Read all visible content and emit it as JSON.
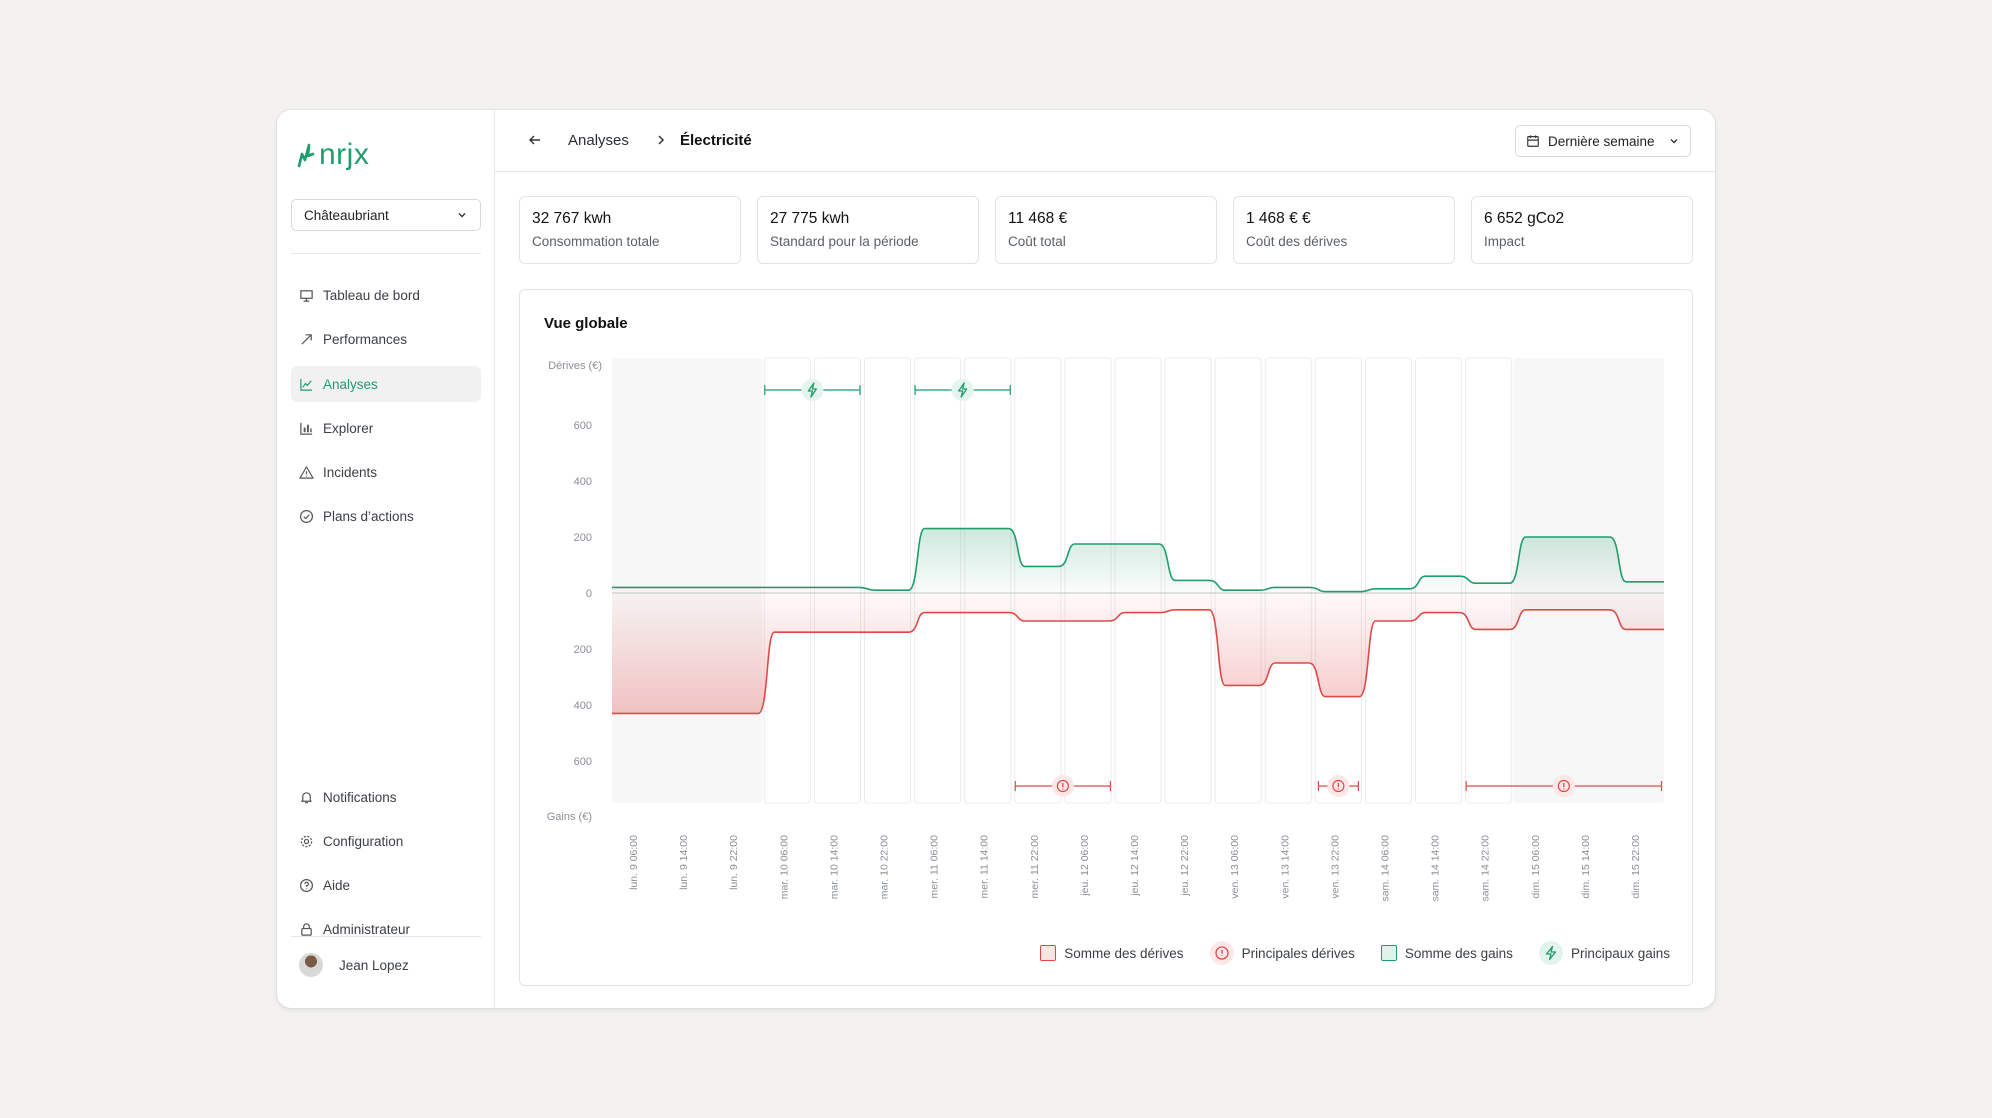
{
  "app": {
    "logo": "nrjx",
    "brand_color": "#1f9d6a"
  },
  "sidebar": {
    "site": "Châteaubriant",
    "items": [
      {
        "label": "Tableau de bord",
        "icon": "presentation-icon"
      },
      {
        "label": "Performances",
        "icon": "trend-arrow-icon"
      },
      {
        "label": "Analyses",
        "icon": "line-chart-icon",
        "active": true
      },
      {
        "label": "Explorer",
        "icon": "bar-chart-icon"
      },
      {
        "label": "Incidents",
        "icon": "warning-icon"
      },
      {
        "label": "Plans d’actions",
        "icon": "check-circle-icon"
      }
    ],
    "bottom_items": [
      {
        "label": "Notifications",
        "icon": "bell-icon"
      },
      {
        "label": "Configuration",
        "icon": "gear-icon"
      },
      {
        "label": "Aide",
        "icon": "help-circle-icon"
      },
      {
        "label": "Administrateur",
        "icon": "lock-icon"
      }
    ],
    "user": "Jean Lopez"
  },
  "header": {
    "breadcrumb": [
      "Analyses",
      "Électricité"
    ],
    "date_range": "Dernière semaine"
  },
  "kpis": [
    {
      "value": "32 767 kwh",
      "label": "Consommation totale"
    },
    {
      "value": "27 775 kwh",
      "label": "Standard pour la période"
    },
    {
      "value": "11 468  €",
      "label": "Coût total"
    },
    {
      "value": "1 468 € €",
      "label": "Coût des dérives"
    },
    {
      "value": "6 652 gCo2",
      "label": "Impact"
    }
  ],
  "card": {
    "title": "Vue globale"
  },
  "chart_data": {
    "type": "area",
    "ylabel_top": "Dérives (€)",
    "ylabel_bottom": "Gains (€)",
    "yticks_top": [
      "600",
      "400",
      "200",
      "0"
    ],
    "yticks_bottom": [
      "200",
      "400",
      "600"
    ],
    "ylim": [
      -600,
      600
    ],
    "x": [
      "lun. 9 06:00",
      "lun. 9 14:00",
      "lun. 9 22:00",
      "mar. 10 06:00",
      "mar. 10 14:00",
      "mar. 10 22:00",
      "mer. 11 06:00",
      "mer. 11 14:00",
      "mer. 11 22:00",
      "jeu. 12 06:00",
      "jeu. 12 14:00",
      "jeu. 12 22:00",
      "ven. 13 06:00",
      "ven. 13 14:00",
      "ven. 13 22:00",
      "sam. 14 06:00",
      "sam. 14 14:00",
      "sam. 14 22:00",
      "dim. 15 06:00",
      "dim. 15 14:00",
      "dim. 15 22:00"
    ],
    "series": [
      {
        "name": "Somme des gains",
        "color": "#1f9d6a",
        "values": [
          20,
          20,
          20,
          20,
          20,
          10,
          230,
          230,
          95,
          175,
          175,
          45,
          10,
          20,
          5,
          15,
          60,
          35,
          200,
          200,
          40
        ]
      },
      {
        "name": "Somme des dérives",
        "color": "#e04848",
        "values": [
          -430,
          -430,
          -430,
          -140,
          -140,
          -140,
          -70,
          -70,
          -100,
          -100,
          -70,
          -60,
          -330,
          -250,
          -370,
          -100,
          -70,
          -130,
          -60,
          -60,
          -130
        ]
      }
    ],
    "gain_markers": [
      {
        "from": "mar. 10 06:00",
        "to": "mar. 10 14:00"
      },
      {
        "from": "mer. 11 06:00",
        "to": "mer. 11 14:00"
      }
    ],
    "drift_markers": [
      {
        "from": "mer. 11 22:00",
        "to": "jeu. 12 06:00"
      },
      {
        "from": "ven. 13 22:00",
        "to": "ven. 13 22:00"
      },
      {
        "from": "sam. 14 22:00",
        "to": "dim. 15 22:00"
      }
    ],
    "legend": [
      "Somme des dérives",
      "Principales dérives",
      "Somme des gains",
      "Principaux gains"
    ],
    "drift_color": "#e04848",
    "gain_color": "#1f9d6a"
  }
}
